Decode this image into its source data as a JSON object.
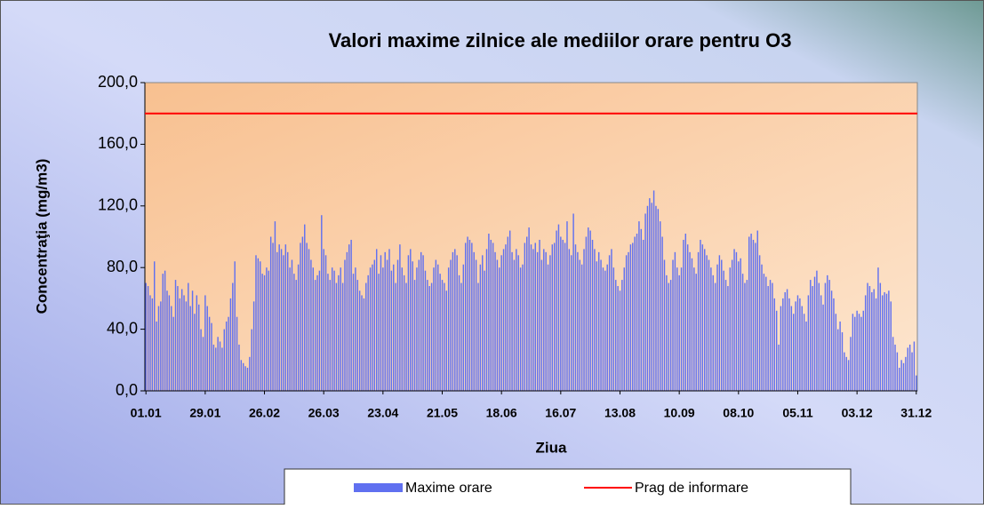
{
  "chart_data": {
    "type": "bar",
    "title": "Valori maxime zilnice ale mediilor orare pentru O3",
    "x_label": "Ziua",
    "y_label": "Concentraţia (mg/m3)",
    "categories": [
      "01.01",
      null,
      null,
      null,
      null,
      null,
      null,
      null,
      null,
      null,
      null,
      null,
      null,
      null,
      null,
      null,
      null,
      null,
      null,
      null,
      null,
      null,
      null,
      null,
      null,
      null,
      null,
      null,
      "29.01",
      null,
      null,
      null,
      null,
      null,
      null,
      null,
      null,
      null,
      null,
      null,
      null,
      null,
      null,
      null,
      null,
      null,
      null,
      null,
      null,
      null,
      null,
      null,
      null,
      null,
      null,
      null,
      "26.02",
      null,
      null,
      null,
      null,
      null,
      null,
      null,
      null,
      null,
      null,
      null,
      null,
      null,
      null,
      null,
      null,
      null,
      null,
      null,
      null,
      null,
      null,
      null,
      null,
      null,
      null,
      null,
      "26.03",
      null,
      null,
      null,
      null,
      null,
      null,
      null,
      null,
      null,
      null,
      null,
      null,
      null,
      null,
      null,
      null,
      null,
      null,
      null,
      null,
      null,
      null,
      null,
      null,
      null,
      null,
      null,
      "23.04",
      null,
      null,
      null,
      null,
      null,
      null,
      null,
      null,
      null,
      null,
      null,
      null,
      null,
      null,
      null,
      null,
      null,
      null,
      null,
      null,
      null,
      null,
      null,
      null,
      null,
      null,
      null,
      "21.05",
      null,
      null,
      null,
      null,
      null,
      null,
      null,
      null,
      null,
      null,
      null,
      null,
      null,
      null,
      null,
      null,
      null,
      null,
      null,
      null,
      null,
      null,
      null,
      null,
      null,
      null,
      null,
      "18.06",
      null,
      null,
      null,
      null,
      null,
      null,
      null,
      null,
      null,
      null,
      null,
      null,
      null,
      null,
      null,
      null,
      null,
      null,
      null,
      null,
      null,
      null,
      null,
      null,
      null,
      null,
      null,
      "16.07",
      null,
      null,
      null,
      null,
      null,
      null,
      null,
      null,
      null,
      null,
      null,
      null,
      null,
      null,
      null,
      null,
      null,
      null,
      null,
      null,
      null,
      null,
      null,
      null,
      null,
      null,
      null,
      "13.08",
      null,
      null,
      null,
      null,
      null,
      null,
      null,
      null,
      null,
      null,
      null,
      null,
      null,
      null,
      null,
      null,
      null,
      null,
      null,
      null,
      null,
      null,
      null,
      null,
      null,
      null,
      null,
      "10.09",
      null,
      null,
      null,
      null,
      null,
      null,
      null,
      null,
      null,
      null,
      null,
      null,
      null,
      null,
      null,
      null,
      null,
      null,
      null,
      null,
      null,
      null,
      null,
      null,
      null,
      null,
      null,
      "08.10",
      null,
      null,
      null,
      null,
      null,
      null,
      null,
      null,
      null,
      null,
      null,
      null,
      null,
      null,
      null,
      null,
      null,
      null,
      null,
      null,
      null,
      null,
      null,
      null,
      null,
      null,
      null,
      "05.11",
      null,
      null,
      null,
      null,
      null,
      null,
      null,
      null,
      null,
      null,
      null,
      null,
      null,
      null,
      null,
      null,
      null,
      null,
      null,
      null,
      null,
      null,
      null,
      null,
      null,
      null,
      null,
      "03.12",
      null,
      null,
      null,
      null,
      null,
      null,
      null,
      null,
      null,
      null,
      null,
      null,
      null,
      null,
      null,
      null,
      null,
      null,
      null,
      null,
      null,
      null,
      null,
      null,
      null,
      null,
      null,
      "31.12"
    ],
    "series": [
      {
        "name": "Maxime orare",
        "color": "#6070f0",
        "values": [
          70,
          68,
          62,
          60,
          84,
          45,
          55,
          58,
          76,
          78,
          65,
          62,
          55,
          48,
          72,
          68,
          60,
          66,
          62,
          58,
          70,
          55,
          65,
          50,
          62,
          56,
          40,
          35,
          62,
          55,
          48,
          44,
          30,
          28,
          35,
          32,
          28,
          40,
          45,
          48,
          60,
          70,
          84,
          48,
          30,
          20,
          18,
          16,
          15,
          22,
          40,
          58,
          88,
          86,
          84,
          76,
          75,
          80,
          78,
          100,
          96,
          110,
          90,
          95,
          92,
          88,
          95,
          90,
          80,
          85,
          76,
          72,
          82,
          96,
          100,
          108,
          96,
          92,
          85,
          80,
          72,
          75,
          78,
          114,
          92,
          88,
          76,
          72,
          80,
          78,
          70,
          75,
          80,
          70,
          85,
          90,
          95,
          98,
          76,
          80,
          72,
          65,
          62,
          60,
          70,
          75,
          80,
          82,
          85,
          92,
          76,
          88,
          80,
          90,
          85,
          92,
          78,
          82,
          70,
          85,
          95,
          80,
          75,
          70,
          88,
          92,
          84,
          72,
          80,
          85,
          90,
          88,
          78,
          72,
          68,
          70,
          80,
          85,
          82,
          76,
          72,
          70,
          65,
          80,
          85,
          90,
          92,
          88,
          75,
          70,
          82,
          96,
          100,
          98,
          96,
          90,
          85,
          70,
          82,
          88,
          78,
          92,
          102,
          98,
          96,
          90,
          85,
          80,
          88,
          92,
          95,
          100,
          104,
          90,
          85,
          92,
          88,
          80,
          82,
          96,
          100,
          106,
          95,
          92,
          96,
          90,
          98,
          85,
          92,
          90,
          82,
          88,
          95,
          96,
          104,
          108,
          100,
          98,
          96,
          110,
          92,
          88,
          115,
          95,
          90,
          85,
          82,
          92,
          100,
          106,
          104,
          98,
          92,
          84,
          90,
          85,
          80,
          78,
          82,
          88,
          92,
          80,
          72,
          68,
          65,
          72,
          80,
          88,
          90,
          95,
          96,
          100,
          102,
          110,
          105,
          98,
          115,
          120,
          125,
          122,
          130,
          120,
          118,
          110,
          100,
          85,
          75,
          70,
          72,
          85,
          90,
          80,
          75,
          80,
          98,
          102,
          95,
          90,
          86,
          80,
          76,
          90,
          98,
          95,
          92,
          88,
          85,
          80,
          75,
          70,
          82,
          88,
          85,
          78,
          72,
          68,
          80,
          85,
          92,
          90,
          84,
          86,
          76,
          70,
          72,
          100,
          102,
          98,
          96,
          104,
          88,
          82,
          76,
          74,
          68,
          72,
          70,
          60,
          52,
          30,
          55,
          60,
          64,
          66,
          60,
          55,
          50,
          58,
          62,
          60,
          55,
          50,
          45,
          62,
          72,
          68,
          74,
          78,
          70,
          62,
          56,
          70,
          75,
          72,
          65,
          60,
          50,
          40,
          45,
          38,
          25,
          22,
          20,
          35,
          50,
          48,
          52,
          50,
          48,
          52,
          62,
          70,
          68,
          64,
          66,
          60,
          80,
          70,
          62,
          64,
          63,
          65,
          58,
          35,
          30,
          25,
          15,
          20,
          18,
          22,
          28,
          30,
          25,
          32,
          10
        ]
      }
    ],
    "threshold": {
      "name": "Prag de informare",
      "value": 180,
      "color": "#ff0000"
    },
    "ylim": [
      0,
      200
    ],
    "yticks": [
      {
        "value": 0,
        "label": "0,0"
      },
      {
        "value": 40,
        "label": "40,0"
      },
      {
        "value": 80,
        "label": "80,0"
      },
      {
        "value": 120,
        "label": "120,0"
      },
      {
        "value": 160,
        "label": "160,0"
      },
      {
        "value": 200,
        "label": "200,0"
      }
    ],
    "grid": false
  }
}
